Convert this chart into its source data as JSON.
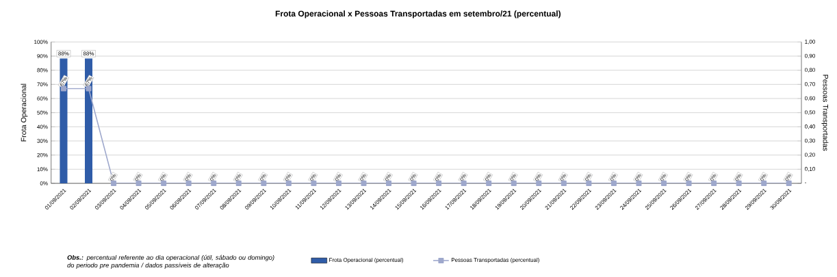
{
  "chart_data": {
    "type": "bar",
    "title": "Frota Operacional x Pessoas Transportadas em setembro/21 (percentual)",
    "ylabel": "Frota Operacional",
    "y2label": "Pessoas Transportadas",
    "categories": [
      "01/09/2021",
      "02/09/2021",
      "03/09/2021",
      "04/09/2021",
      "05/09/2021",
      "06/09/2021",
      "07/09/2021",
      "08/09/2021",
      "09/09/2021",
      "10/09/2021",
      "11/09/2021",
      "12/09/2021",
      "13/09/2021",
      "14/09/2021",
      "15/09/2021",
      "16/09/2021",
      "17/09/2021",
      "18/09/2021",
      "19/09/2021",
      "20/09/2021",
      "21/09/2021",
      "22/09/2021",
      "23/09/2021",
      "24/09/2021",
      "25/09/2021",
      "26/09/2021",
      "27/09/2021",
      "28/09/2021",
      "29/09/2021",
      "30/09/2021"
    ],
    "series": [
      {
        "name": "Frota Operacional (percentual)",
        "color": "#2f5ca8",
        "values": [
          88,
          88,
          null,
          null,
          null,
          null,
          null,
          null,
          null,
          null,
          null,
          null,
          null,
          null,
          null,
          null,
          null,
          null,
          null,
          null,
          null,
          null,
          null,
          null,
          null,
          null,
          null,
          null,
          null,
          null
        ],
        "value_labels": [
          "88%",
          "88%",
          null,
          null,
          null,
          null,
          null,
          null,
          null,
          null,
          null,
          null,
          null,
          null,
          null,
          null,
          null,
          null,
          null,
          null,
          null,
          null,
          null,
          null,
          null,
          null,
          null,
          null,
          null,
          null
        ]
      },
      {
        "name": "Pessoas Transportadas (percentual)",
        "type": "line",
        "axis": "y2",
        "color": "#9ea8cc",
        "marker": "square",
        "values": [
          0.67,
          0.67,
          0,
          0,
          0,
          0,
          0,
          0,
          0,
          0,
          0,
          0,
          0,
          0,
          0,
          0,
          0,
          0,
          0,
          0,
          0,
          0,
          0,
          0,
          0,
          0,
          0,
          0,
          0,
          0
        ],
        "value_labels": [
          "67%",
          "67%",
          "0%",
          "0%",
          "0%",
          "0%",
          "0%",
          "0%",
          "0%",
          "0%",
          "0%",
          "0%",
          "0%",
          "0%",
          "0%",
          "0%",
          "0%",
          "0%",
          "0%",
          "0%",
          "0%",
          "0%",
          "0%",
          "0%",
          "0%",
          "0%",
          "0%",
          "0%",
          "0%",
          "0%"
        ]
      }
    ],
    "ylim": [
      0,
      100
    ],
    "yticks": [
      {
        "value": 0,
        "label": "0%"
      },
      {
        "value": 10,
        "label": "10%"
      },
      {
        "value": 20,
        "label": "20%"
      },
      {
        "value": 30,
        "label": "30%"
      },
      {
        "value": 40,
        "label": "40%"
      },
      {
        "value": 50,
        "label": "50%"
      },
      {
        "value": 60,
        "label": "60%"
      },
      {
        "value": 70,
        "label": "70%"
      },
      {
        "value": 80,
        "label": "80%"
      },
      {
        "value": 90,
        "label": "90%"
      },
      {
        "value": 100,
        "label": "100%"
      }
    ],
    "y2lim": [
      0,
      1
    ],
    "y2ticks": [
      {
        "value": 0,
        "label": "-"
      },
      {
        "value": 0.1,
        "label": "0,10"
      },
      {
        "value": 0.2,
        "label": "0,20"
      },
      {
        "value": 0.3,
        "label": "0,30"
      },
      {
        "value": 0.4,
        "label": "0,40"
      },
      {
        "value": 0.5,
        "label": "0,50"
      },
      {
        "value": 0.6,
        "label": "0,60"
      },
      {
        "value": 0.7,
        "label": "0,70"
      },
      {
        "value": 0.8,
        "label": "0,80"
      },
      {
        "value": 0.9,
        "label": "0,90"
      },
      {
        "value": 1,
        "label": "1,00"
      }
    ],
    "grid": "y",
    "legend": "bottom",
    "annotations": [
      "**Obs.:** percentual referente ao dia operacional (útil, sábado ou domingo) do periodo pre pandemia / dados passíveis de alteração"
    ]
  }
}
